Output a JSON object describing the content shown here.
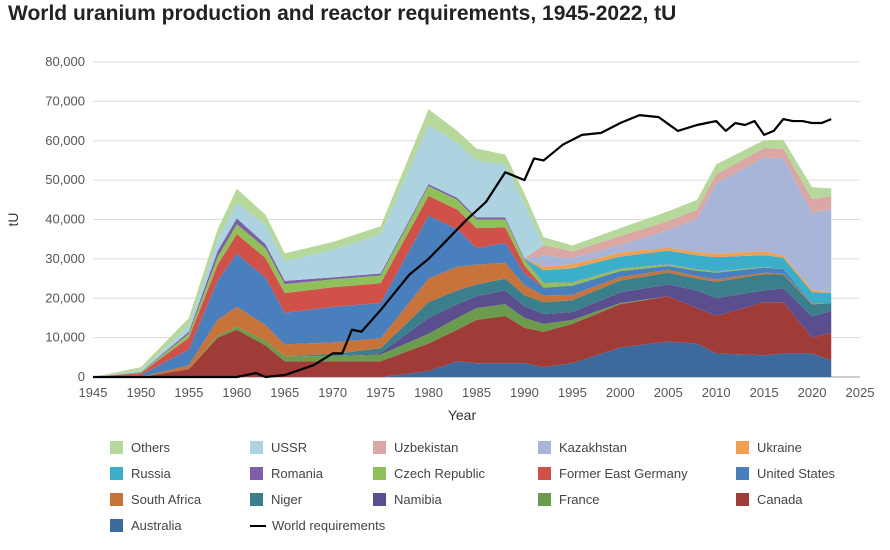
{
  "title": "World uranium production and reactor requirements, 1945-2022, tU",
  "chart_data": {
    "type": "area",
    "title": "World uranium production and reactor requirements, 1945-2022, tU",
    "xlabel": "Year",
    "ylabel": "tU",
    "xlim": [
      1945,
      2025
    ],
    "ylim": [
      0,
      80000
    ],
    "xticks": [
      "1945",
      "1950",
      "1955",
      "1960",
      "1965",
      "1970",
      "1975",
      "1980",
      "1985",
      "1990",
      "1995",
      "2000",
      "2005",
      "2010",
      "2015",
      "2020",
      "2025"
    ],
    "yticks": [
      "0",
      "10,000",
      "20,000",
      "30,000",
      "40,000",
      "50,000",
      "60,000",
      "70,000",
      "80,000"
    ],
    "grid": "horizontal",
    "legend_position": "bottom",
    "x": [
      1945,
      1950,
      1955,
      1958,
      1960,
      1963,
      1965,
      1970,
      1975,
      1980,
      1983,
      1985,
      1988,
      1990,
      1992,
      1995,
      2000,
      2005,
      2008,
      2010,
      2015,
      2017,
      2020,
      2022
    ],
    "series": [
      {
        "name": "Australia",
        "color": "#3d6a9c",
        "values": [
          0,
          0,
          0,
          0,
          0,
          0,
          0,
          0,
          0,
          1500,
          4000,
          3500,
          3500,
          3500,
          2500,
          3500,
          7500,
          9000,
          8500,
          6000,
          5500,
          6000,
          6000,
          4200
        ]
      },
      {
        "name": "Canada",
        "color": "#a03c38",
        "values": [
          0,
          0,
          2000,
          10000,
          12000,
          8000,
          4000,
          4000,
          4000,
          7000,
          8000,
          11000,
          12000,
          9000,
          9000,
          10000,
          11000,
          11500,
          9000,
          9500,
          13500,
          13000,
          4000,
          7000
        ]
      },
      {
        "name": "France",
        "color": "#6b9b4c",
        "values": [
          0,
          0,
          0,
          500,
          800,
          1200,
          1300,
          1300,
          1700,
          2500,
          3000,
          3000,
          3000,
          2500,
          2000,
          1000,
          300,
          0,
          0,
          0,
          0,
          0,
          0,
          0
        ]
      },
      {
        "name": "Namibia",
        "color": "#5b4e8e",
        "values": [
          0,
          0,
          0,
          0,
          0,
          0,
          0,
          0,
          400,
          4000,
          3500,
          3000,
          3500,
          3000,
          2500,
          2000,
          2700,
          3000,
          4500,
          4500,
          3000,
          3500,
          5400,
          5600
        ]
      },
      {
        "name": "Niger",
        "color": "#3b7f8c",
        "values": [
          0,
          0,
          0,
          0,
          0,
          0,
          0,
          500,
          1200,
          4000,
          3500,
          3000,
          3000,
          2800,
          3000,
          3000,
          3000,
          3000,
          3000,
          4200,
          4100,
          3500,
          3000,
          2000
        ]
      },
      {
        "name": "South Africa",
        "color": "#c7733a",
        "values": [
          0,
          0,
          1000,
          4000,
          5000,
          4000,
          3000,
          3000,
          2500,
          6000,
          6000,
          5000,
          4000,
          2500,
          1700,
          1400,
          900,
          700,
          600,
          600,
          400,
          300,
          300,
          0
        ]
      },
      {
        "name": "United States",
        "color": "#4a7fbe",
        "values": [
          0,
          500,
          4000,
          10000,
          13500,
          12000,
          8000,
          9000,
          9000,
          16000,
          9500,
          4300,
          5000,
          3000,
          2000,
          2300,
          1500,
          1000,
          1400,
          1700,
          1300,
          1100,
          0,
          0
        ]
      },
      {
        "name": "Former East Germany",
        "color": "#d0504a",
        "values": [
          0,
          500,
          3000,
          4000,
          5000,
          5000,
          5000,
          5000,
          5000,
          5000,
          5000,
          5000,
          4000,
          2000,
          0,
          0,
          0,
          0,
          0,
          0,
          0,
          0,
          0,
          0
        ]
      },
      {
        "name": "Czech Republic",
        "color": "#8fc05a",
        "values": [
          0,
          200,
          1000,
          2000,
          2500,
          2500,
          2300,
          2000,
          2000,
          2500,
          2500,
          2200,
          2000,
          1500,
          1200,
          800,
          600,
          400,
          300,
          250,
          150,
          0,
          0,
          0
        ]
      },
      {
        "name": "Romania",
        "color": "#7d5fa8",
        "values": [
          0,
          100,
          500,
          1500,
          1500,
          1000,
          800,
          500,
          500,
          500,
          500,
          500,
          500,
          300,
          200,
          100,
          100,
          100,
          100,
          100,
          0,
          0,
          0,
          0
        ]
      },
      {
        "name": "Russia",
        "color": "#3bafc9",
        "values": [
          0,
          0,
          0,
          0,
          0,
          0,
          0,
          0,
          0,
          0,
          0,
          0,
          0,
          0,
          3000,
          3500,
          3000,
          3400,
          3500,
          3600,
          3000,
          2900,
          2800,
          2500
        ]
      },
      {
        "name": "Ukraine",
        "color": "#f0a050",
        "values": [
          0,
          0,
          0,
          0,
          0,
          0,
          0,
          0,
          0,
          0,
          0,
          0,
          0,
          0,
          900,
          1000,
          1000,
          800,
          800,
          850,
          1000,
          550,
          700,
          100
        ]
      },
      {
        "name": "Kazakhstan",
        "color": "#a6b5d8",
        "values": [
          0,
          0,
          0,
          0,
          0,
          0,
          0,
          0,
          0,
          0,
          0,
          0,
          0,
          0,
          2800,
          1600,
          1900,
          4400,
          8500,
          17800,
          23800,
          24700,
          19500,
          21200
        ]
      },
      {
        "name": "Uzbekistan",
        "color": "#dba7a4",
        "values": [
          0,
          0,
          0,
          0,
          0,
          0,
          0,
          0,
          0,
          0,
          0,
          0,
          0,
          0,
          2700,
          1700,
          2300,
          2300,
          2300,
          2400,
          2400,
          2400,
          3500,
          3300
        ]
      },
      {
        "name": "USSR",
        "color": "#acd3df",
        "values": [
          0,
          400,
          1500,
          3000,
          4000,
          5000,
          5000,
          7000,
          10000,
          15000,
          14000,
          14500,
          13500,
          14000,
          0,
          0,
          0,
          0,
          0,
          0,
          0,
          0,
          0,
          0
        ]
      },
      {
        "name": "Others",
        "color": "#b6d89b",
        "values": [
          0,
          800,
          2000,
          2500,
          3500,
          2500,
          2000,
          2000,
          2000,
          4000,
          3000,
          3000,
          2500,
          2500,
          2000,
          1500,
          2000,
          2500,
          2500,
          2500,
          2000,
          2300,
          3000,
          2000
        ]
      }
    ],
    "requirements": {
      "name": "World requirements",
      "color": "#000000",
      "x": [
        1945,
        1950,
        1955,
        1960,
        1962,
        1963,
        1965,
        1968,
        1970,
        1971,
        1972,
        1973,
        1975,
        1977,
        1978,
        1980,
        1982,
        1984,
        1986,
        1988,
        1990,
        1991,
        1992,
        1994,
        1996,
        1998,
        2000,
        2002,
        2004,
        2006,
        2008,
        2010,
        2011,
        2012,
        2013,
        2014,
        2015,
        2016,
        2017,
        2018,
        2019,
        2020,
        2021,
        2022
      ],
      "values": [
        0,
        0,
        0,
        0,
        1000,
        0,
        500,
        3000,
        6000,
        6000,
        12000,
        11500,
        17000,
        23000,
        26000,
        30000,
        35000,
        40000,
        44500,
        52000,
        50000,
        55500,
        55000,
        59000,
        61500,
        62000,
        64500,
        66500,
        66000,
        62500,
        64000,
        65000,
        62500,
        64500,
        64000,
        65000,
        61500,
        62500,
        65500,
        65000,
        65000,
        64500,
        64500,
        65500
      ]
    }
  }
}
